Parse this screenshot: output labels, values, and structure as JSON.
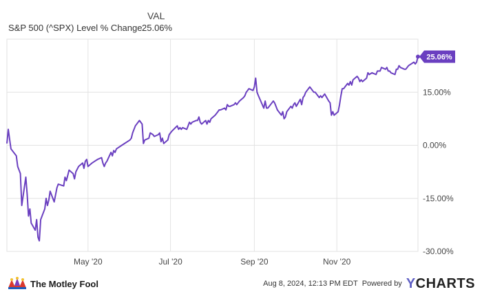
{
  "legend": {
    "header": "VAL",
    "series_name": "S&P 500 (^SPX) Level % Change",
    "series_value": "25.06%"
  },
  "footer": {
    "brand": "The Motley Fool",
    "timestamp": "Aug 8, 2024, 12:13 PM EDT",
    "powered_by": "Powered by",
    "provider": "YCHARTS"
  },
  "colors": {
    "line": "#6a3fc0",
    "grid": "#e2e2e2",
    "axis_text": "#444444",
    "badge": "#6a3fc0"
  },
  "icons": [
    "jester-hat-icon",
    "ycharts-logo-icon"
  ],
  "chart_data": {
    "type": "line",
    "x_type": "date",
    "x_ticks": [
      {
        "label": "May '20",
        "date": "2020-05-01"
      },
      {
        "label": "Jul '20",
        "date": "2020-07-01"
      },
      {
        "label": "Sep '20",
        "date": "2020-09-01"
      },
      {
        "label": "Nov '20",
        "date": "2020-11-01"
      }
    ],
    "y_ticks": [
      {
        "label": "15.00%",
        "value": 15
      },
      {
        "label": "0.00%",
        "value": 0
      },
      {
        "label": "-15.00%",
        "value": -15
      },
      {
        "label": "-30.00%",
        "value": -30
      }
    ],
    "x_range": [
      "2020-03-02",
      "2020-12-31"
    ],
    "ylim": [
      -30,
      30
    ],
    "grid": true,
    "end_label": "25.06%",
    "series": [
      {
        "name": "S&P 500 (^SPX) Level % Change",
        "points": [
          [
            "2020-03-02",
            0.5
          ],
          [
            "2020-03-03",
            4.5
          ],
          [
            "2020-03-05",
            -1.0
          ],
          [
            "2020-03-09",
            -3.0
          ],
          [
            "2020-03-10",
            -6.0
          ],
          [
            "2020-03-12",
            -8.0
          ],
          [
            "2020-03-13",
            -17.0
          ],
          [
            "2020-03-16",
            -9.0
          ],
          [
            "2020-03-17",
            -14.0
          ],
          [
            "2020-03-18",
            -20.0
          ],
          [
            "2020-03-19",
            -18.0
          ],
          [
            "2020-03-20",
            -22.0
          ],
          [
            "2020-03-23",
            -24.0
          ],
          [
            "2020-03-24",
            -21.0
          ],
          [
            "2020-03-25",
            -26.0
          ],
          [
            "2020-03-26",
            -27.0
          ],
          [
            "2020-03-27",
            -21.0
          ],
          [
            "2020-03-30",
            -18.0
          ],
          [
            "2020-03-31",
            -15.0
          ],
          [
            "2020-04-01",
            -17.0
          ],
          [
            "2020-04-02",
            -15.5
          ],
          [
            "2020-04-03",
            -13.0
          ],
          [
            "2020-04-06",
            -16.0
          ],
          [
            "2020-04-07",
            -14.0
          ],
          [
            "2020-04-08",
            -12.0
          ],
          [
            "2020-04-09",
            -11.0
          ],
          [
            "2020-04-13",
            -11.5
          ],
          [
            "2020-04-14",
            -9.0
          ],
          [
            "2020-04-15",
            -10.0
          ],
          [
            "2020-04-16",
            -8.5
          ],
          [
            "2020-04-17",
            -7.0
          ],
          [
            "2020-04-20",
            -8.0
          ],
          [
            "2020-04-21",
            -9.5
          ],
          [
            "2020-04-22",
            -7.5
          ],
          [
            "2020-04-24",
            -6.0
          ],
          [
            "2020-04-27",
            -5.0
          ],
          [
            "2020-04-28",
            -6.5
          ],
          [
            "2020-04-29",
            -4.5
          ],
          [
            "2020-04-30",
            -4.0
          ],
          [
            "2020-05-01",
            -6.0
          ],
          [
            "2020-05-04",
            -5.0
          ],
          [
            "2020-05-06",
            -4.5
          ],
          [
            "2020-05-08",
            -4.0
          ],
          [
            "2020-05-11",
            -3.5
          ],
          [
            "2020-05-12",
            -5.0
          ],
          [
            "2020-05-13",
            -6.0
          ],
          [
            "2020-05-14",
            -5.0
          ],
          [
            "2020-05-15",
            -4.5
          ],
          [
            "2020-05-18",
            -2.0
          ],
          [
            "2020-05-19",
            -3.0
          ],
          [
            "2020-05-20",
            -1.5
          ],
          [
            "2020-05-21",
            -2.0
          ],
          [
            "2020-05-22",
            -1.0
          ],
          [
            "2020-05-26",
            0.0
          ],
          [
            "2020-05-28",
            0.5
          ],
          [
            "2020-06-01",
            1.5
          ],
          [
            "2020-06-02",
            2.0
          ],
          [
            "2020-06-03",
            3.5
          ],
          [
            "2020-06-05",
            5.5
          ],
          [
            "2020-06-08",
            7.0
          ],
          [
            "2020-06-10",
            6.0
          ],
          [
            "2020-06-11",
            0.5
          ],
          [
            "2020-06-12",
            1.5
          ],
          [
            "2020-06-15",
            2.0
          ],
          [
            "2020-06-16",
            3.5
          ],
          [
            "2020-06-18",
            3.0
          ],
          [
            "2020-06-19",
            2.5
          ],
          [
            "2020-06-22",
            3.0
          ],
          [
            "2020-06-23",
            3.5
          ],
          [
            "2020-06-24",
            1.0
          ],
          [
            "2020-06-25",
            2.0
          ],
          [
            "2020-06-26",
            0.5
          ],
          [
            "2020-06-29",
            1.5
          ],
          [
            "2020-06-30",
            3.0
          ],
          [
            "2020-07-01",
            3.5
          ],
          [
            "2020-07-02",
            4.0
          ],
          [
            "2020-07-06",
            5.5
          ],
          [
            "2020-07-07",
            4.5
          ],
          [
            "2020-07-08",
            5.0
          ],
          [
            "2020-07-09",
            4.5
          ],
          [
            "2020-07-10",
            5.0
          ],
          [
            "2020-07-13",
            4.5
          ],
          [
            "2020-07-14",
            5.5
          ],
          [
            "2020-07-15",
            6.5
          ],
          [
            "2020-07-16",
            6.0
          ],
          [
            "2020-07-17",
            6.5
          ],
          [
            "2020-07-20",
            7.0
          ],
          [
            "2020-07-21",
            7.0
          ],
          [
            "2020-07-22",
            8.0
          ],
          [
            "2020-07-23",
            6.5
          ],
          [
            "2020-07-24",
            6.0
          ],
          [
            "2020-07-27",
            7.0
          ],
          [
            "2020-07-28",
            6.0
          ],
          [
            "2020-07-29",
            7.0
          ],
          [
            "2020-07-30",
            6.5
          ],
          [
            "2020-07-31",
            7.5
          ],
          [
            "2020-08-03",
            8.5
          ],
          [
            "2020-08-04",
            9.0
          ],
          [
            "2020-08-05",
            9.5
          ],
          [
            "2020-08-06",
            10.0
          ],
          [
            "2020-08-07",
            10.0
          ],
          [
            "2020-08-10",
            10.5
          ],
          [
            "2020-08-11",
            10.0
          ],
          [
            "2020-08-12",
            11.5
          ],
          [
            "2020-08-13",
            11.0
          ],
          [
            "2020-08-14",
            11.0
          ],
          [
            "2020-08-17",
            11.5
          ],
          [
            "2020-08-18",
            12.0
          ],
          [
            "2020-08-19",
            11.5
          ],
          [
            "2020-08-20",
            12.0
          ],
          [
            "2020-08-21",
            12.5
          ],
          [
            "2020-08-24",
            13.5
          ],
          [
            "2020-08-25",
            14.0
          ],
          [
            "2020-08-26",
            15.0
          ],
          [
            "2020-08-27",
            15.5
          ],
          [
            "2020-08-28",
            16.0
          ],
          [
            "2020-08-31",
            15.5
          ],
          [
            "2020-09-01",
            16.5
          ],
          [
            "2020-09-02",
            19.0
          ],
          [
            "2020-09-03",
            15.0
          ],
          [
            "2020-09-04",
            14.0
          ],
          [
            "2020-09-08",
            10.5
          ],
          [
            "2020-09-09",
            12.5
          ],
          [
            "2020-09-10",
            10.5
          ],
          [
            "2020-09-11",
            10.5
          ],
          [
            "2020-09-14",
            12.0
          ],
          [
            "2020-09-15",
            12.5
          ],
          [
            "2020-09-16",
            12.0
          ],
          [
            "2020-09-17",
            11.0
          ],
          [
            "2020-09-18",
            10.0
          ],
          [
            "2020-09-21",
            8.5
          ],
          [
            "2020-09-22",
            9.5
          ],
          [
            "2020-09-23",
            7.5
          ],
          [
            "2020-09-24",
            8.0
          ],
          [
            "2020-09-25",
            9.5
          ],
          [
            "2020-09-28",
            11.0
          ],
          [
            "2020-09-29",
            10.5
          ],
          [
            "2020-09-30",
            11.5
          ],
          [
            "2020-10-01",
            12.0
          ],
          [
            "2020-10-02",
            11.0
          ],
          [
            "2020-10-05",
            13.0
          ],
          [
            "2020-10-06",
            11.5
          ],
          [
            "2020-10-07",
            13.5
          ],
          [
            "2020-10-08",
            14.0
          ],
          [
            "2020-10-09",
            15.0
          ],
          [
            "2020-10-12",
            16.5
          ],
          [
            "2020-10-13",
            16.0
          ],
          [
            "2020-10-14",
            15.5
          ],
          [
            "2020-10-15",
            15.0
          ],
          [
            "2020-10-16",
            15.0
          ],
          [
            "2020-10-19",
            13.5
          ],
          [
            "2020-10-20",
            14.0
          ],
          [
            "2020-10-21",
            13.5
          ],
          [
            "2020-10-22",
            14.0
          ],
          [
            "2020-10-23",
            14.5
          ],
          [
            "2020-10-26",
            12.5
          ],
          [
            "2020-10-27",
            12.0
          ],
          [
            "2020-10-28",
            8.5
          ],
          [
            "2020-10-29",
            9.5
          ],
          [
            "2020-10-30",
            8.5
          ],
          [
            "2020-11-02",
            9.5
          ],
          [
            "2020-11-03",
            11.5
          ],
          [
            "2020-11-04",
            14.0
          ],
          [
            "2020-11-05",
            16.0
          ],
          [
            "2020-11-06",
            16.0
          ],
          [
            "2020-11-09",
            17.5
          ],
          [
            "2020-11-10",
            17.0
          ],
          [
            "2020-11-11",
            18.0
          ],
          [
            "2020-11-12",
            17.0
          ],
          [
            "2020-11-13",
            18.5
          ],
          [
            "2020-11-16",
            19.5
          ],
          [
            "2020-11-17",
            19.0
          ],
          [
            "2020-11-18",
            18.0
          ],
          [
            "2020-11-19",
            18.5
          ],
          [
            "2020-11-20",
            18.0
          ],
          [
            "2020-11-23",
            19.0
          ],
          [
            "2020-11-24",
            20.5
          ],
          [
            "2020-11-25",
            20.0
          ],
          [
            "2020-11-27",
            20.5
          ],
          [
            "2020-11-30",
            20.0
          ],
          [
            "2020-12-01",
            21.0
          ],
          [
            "2020-12-02",
            21.0
          ],
          [
            "2020-12-03",
            21.0
          ],
          [
            "2020-12-04",
            22.0
          ],
          [
            "2020-12-07",
            21.5
          ],
          [
            "2020-12-08",
            22.0
          ],
          [
            "2020-12-09",
            21.0
          ],
          [
            "2020-12-10",
            21.0
          ],
          [
            "2020-12-11",
            20.5
          ],
          [
            "2020-12-14",
            20.0
          ],
          [
            "2020-12-15",
            21.5
          ],
          [
            "2020-12-16",
            21.5
          ],
          [
            "2020-12-17",
            22.5
          ],
          [
            "2020-12-18",
            22.0
          ],
          [
            "2020-12-21",
            21.5
          ],
          [
            "2020-12-22",
            21.5
          ],
          [
            "2020-12-23",
            22.0
          ],
          [
            "2020-12-24",
            22.5
          ],
          [
            "2020-12-28",
            23.5
          ],
          [
            "2020-12-29",
            23.0
          ],
          [
            "2020-12-30",
            23.5
          ],
          [
            "2020-12-31",
            25.06
          ]
        ]
      }
    ]
  }
}
